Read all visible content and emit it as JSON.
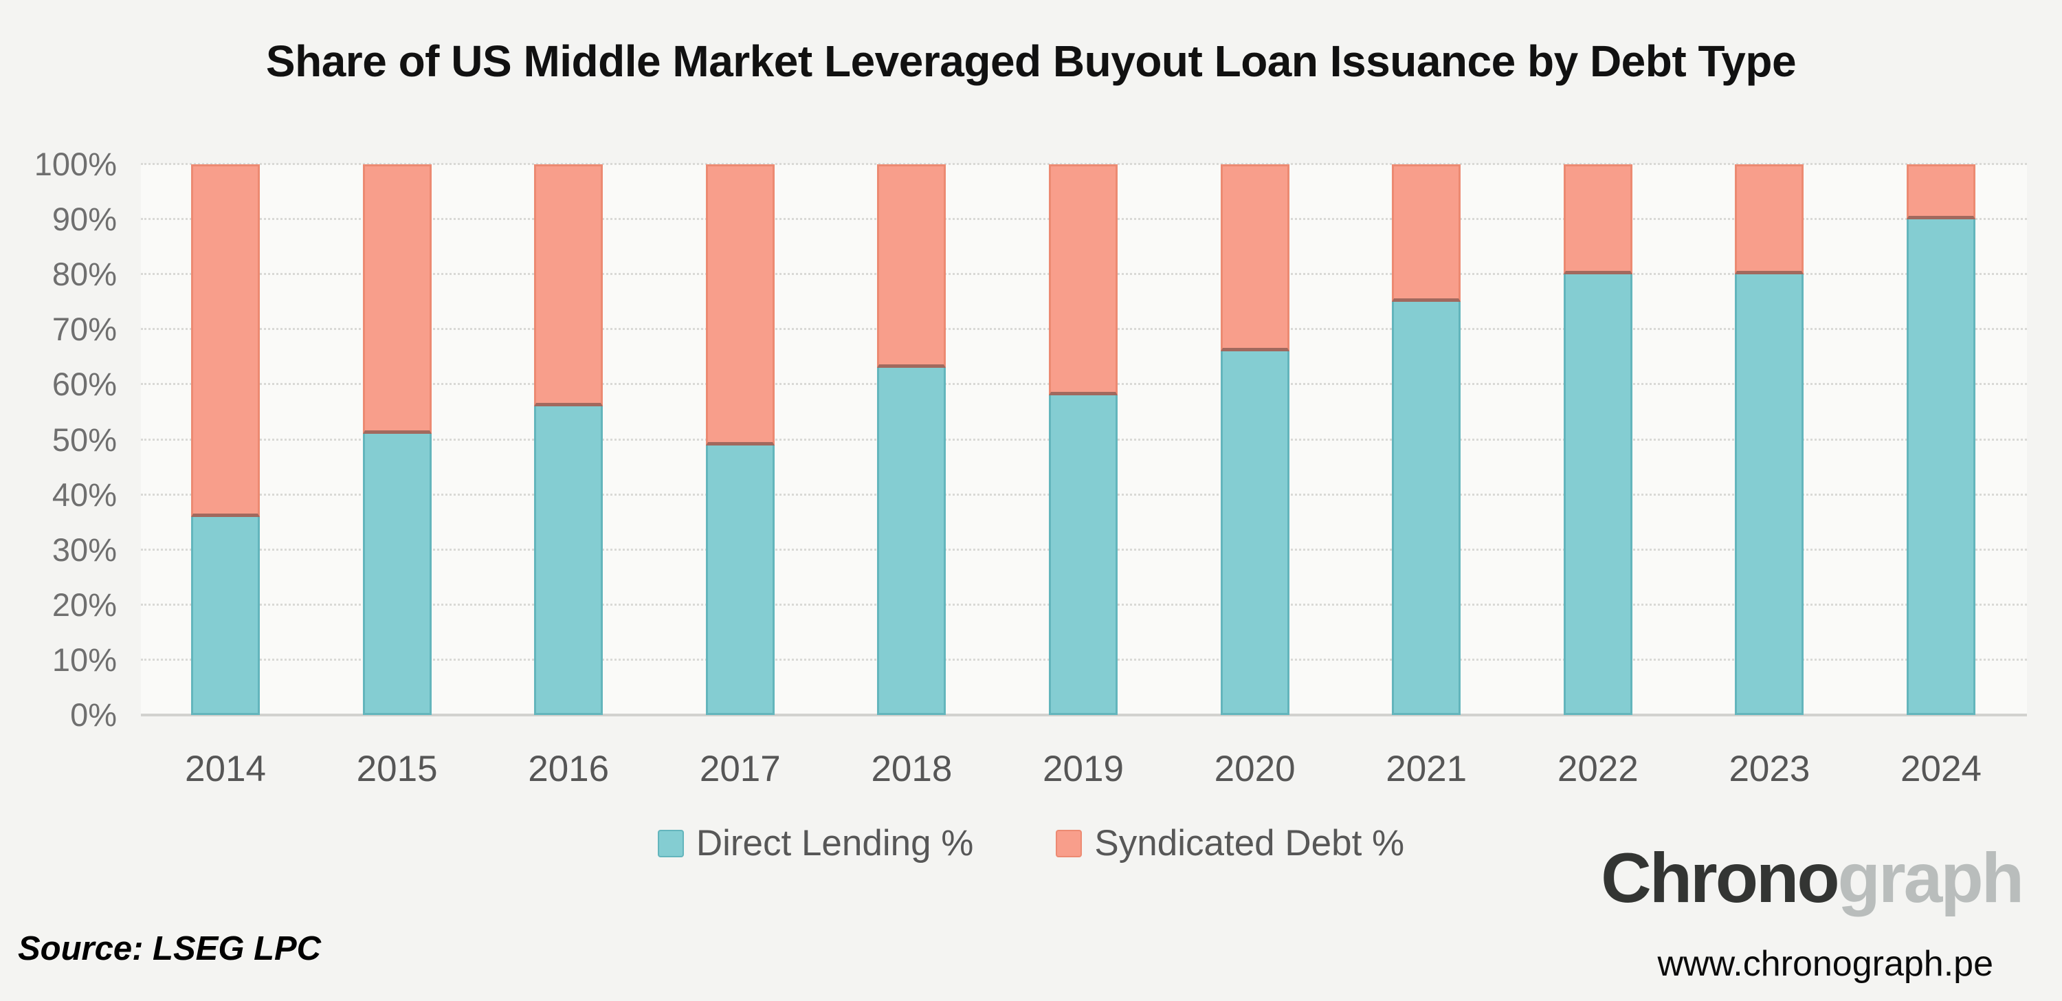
{
  "chart_data": {
    "type": "bar",
    "stacked": true,
    "title": "Share of US Middle Market Leveraged Buyout Loan Issuance by Debt Type",
    "categories": [
      "2014",
      "2015",
      "2016",
      "2017",
      "2018",
      "2019",
      "2020",
      "2021",
      "2022",
      "2023",
      "2024"
    ],
    "series": [
      {
        "name": "Direct Lending %",
        "color": "#84cdd2",
        "border_color": "#63b5bc",
        "values": [
          36,
          51,
          56,
          49,
          63,
          58,
          66,
          75,
          80,
          80,
          90
        ]
      },
      {
        "name": "Syndicated Debt %",
        "color": "#f89e8b",
        "border_color": "#ec8a72",
        "values": [
          64,
          49,
          44,
          51,
          37,
          42,
          34,
          25,
          20,
          20,
          10
        ]
      }
    ],
    "xlabel": "",
    "ylabel": "",
    "ylim": [
      0,
      100
    ],
    "ytick_step": 10,
    "ytick_suffix": "%",
    "grid": "horizontal-dotted",
    "legend_position": "bottom"
  },
  "branding": {
    "logo_part_dark": "Chrono",
    "logo_part_light": "graph",
    "website": "www.chronograph.pe"
  },
  "footer": {
    "source": "Source: LSEG LPC"
  }
}
